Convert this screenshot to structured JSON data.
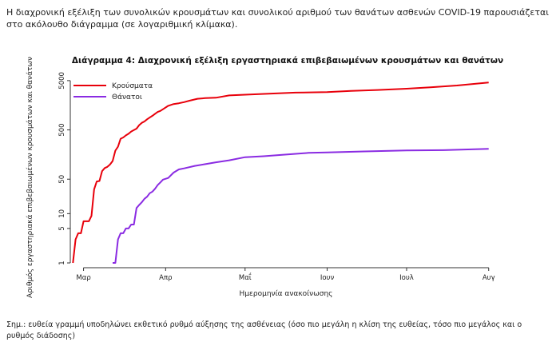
{
  "intro_text": "Η διαχρονική εξέλιξη των συνολικών κρουσμάτων και συνολικού αριθμού των θανάτων ασθενών COVID-19 παρουσιάζεται στο ακόλουθο διάγραμμα (σε λογαριθμική κλίμακα).",
  "note_text": "Σημ.: ευθεία γραμμή υποδηλώνει εκθετικό ρυθμό αύξησης της ασθένειας (όσο πιο μεγάλη η κλίση της ευθείας, τόσο πιο μεγάλος και ο ρυθμός διάδοσης)",
  "chart_data": {
    "type": "line",
    "title": "Διάγραμμα 4: Διαχρονική εξέλιξη εργαστηριακά επιβεβαιωμένων κρουσμάτων και θανάτων",
    "xlabel": "Ημερομηνία ανακοίνωσης",
    "ylabel": "Αριθμός εργαστηριακά επιβεβαιωμένων κρουσμάτων και θανάτων",
    "yscale": "log",
    "ylim": [
      0.8,
      6000
    ],
    "xlim": [
      "2020-02-25",
      "2020-08-05"
    ],
    "y_ticks": [
      1,
      5,
      10,
      50,
      500,
      5000
    ],
    "x_ticks": [
      {
        "date": "2020-03-01",
        "label": "Μαρ"
      },
      {
        "date": "2020-04-01",
        "label": "Απρ"
      },
      {
        "date": "2020-05-01",
        "label": "Μαΐ"
      },
      {
        "date": "2020-06-01",
        "label": "Ιουν"
      },
      {
        "date": "2020-07-01",
        "label": "Ιουλ"
      },
      {
        "date": "2020-08-01",
        "label": "Αυγ"
      }
    ],
    "legend_position": "top-left",
    "grid": false,
    "series": [
      {
        "name": "Κρούσματα",
        "color": "#e8000b",
        "points": [
          [
            "2020-02-26",
            1
          ],
          [
            "2020-02-27",
            3
          ],
          [
            "2020-02-28",
            4
          ],
          [
            "2020-02-29",
            4
          ],
          [
            "2020-03-01",
            7
          ],
          [
            "2020-03-02",
            7
          ],
          [
            "2020-03-03",
            7
          ],
          [
            "2020-03-04",
            9
          ],
          [
            "2020-03-05",
            31
          ],
          [
            "2020-03-06",
            45
          ],
          [
            "2020-03-07",
            46
          ],
          [
            "2020-03-08",
            73
          ],
          [
            "2020-03-09",
            84
          ],
          [
            "2020-03-10",
            89
          ],
          [
            "2020-03-11",
            99
          ],
          [
            "2020-03-12",
            117
          ],
          [
            "2020-03-13",
            190
          ],
          [
            "2020-03-14",
            228
          ],
          [
            "2020-03-15",
            331
          ],
          [
            "2020-03-16",
            352
          ],
          [
            "2020-03-17",
            387
          ],
          [
            "2020-03-18",
            418
          ],
          [
            "2020-03-19",
            464
          ],
          [
            "2020-03-20",
            495
          ],
          [
            "2020-03-21",
            530
          ],
          [
            "2020-03-22",
            624
          ],
          [
            "2020-03-23",
            695
          ],
          [
            "2020-03-24",
            743
          ],
          [
            "2020-03-25",
            821
          ],
          [
            "2020-03-26",
            892
          ],
          [
            "2020-03-27",
            966
          ],
          [
            "2020-03-28",
            1061
          ],
          [
            "2020-03-29",
            1156
          ],
          [
            "2020-03-30",
            1212
          ],
          [
            "2020-03-31",
            1314
          ],
          [
            "2020-04-02",
            1544
          ],
          [
            "2020-04-04",
            1673
          ],
          [
            "2020-04-06",
            1735
          ],
          [
            "2020-04-08",
            1832
          ],
          [
            "2020-04-10",
            1955
          ],
          [
            "2020-04-13",
            2145
          ],
          [
            "2020-04-16",
            2207
          ],
          [
            "2020-04-20",
            2245
          ],
          [
            "2020-04-25",
            2506
          ],
          [
            "2020-05-01",
            2591
          ],
          [
            "2020-05-10",
            2710
          ],
          [
            "2020-05-20",
            2850
          ],
          [
            "2020-06-01",
            2918
          ],
          [
            "2020-06-10",
            3083
          ],
          [
            "2020-06-20",
            3227
          ],
          [
            "2020-07-01",
            3432
          ],
          [
            "2020-07-10",
            3672
          ],
          [
            "2020-07-20",
            3983
          ],
          [
            "2020-08-01",
            4587
          ]
        ]
      },
      {
        "name": "Θάνατοι",
        "color": "#8a2be2",
        "points": [
          [
            "2020-03-12",
            1
          ],
          [
            "2020-03-13",
            1
          ],
          [
            "2020-03-14",
            3
          ],
          [
            "2020-03-15",
            4
          ],
          [
            "2020-03-16",
            4
          ],
          [
            "2020-03-17",
            5
          ],
          [
            "2020-03-18",
            5
          ],
          [
            "2020-03-19",
            6
          ],
          [
            "2020-03-20",
            6
          ],
          [
            "2020-03-21",
            13
          ],
          [
            "2020-03-22",
            15
          ],
          [
            "2020-03-23",
            17
          ],
          [
            "2020-03-24",
            20
          ],
          [
            "2020-03-25",
            22
          ],
          [
            "2020-03-26",
            26
          ],
          [
            "2020-03-27",
            28
          ],
          [
            "2020-03-28",
            32
          ],
          [
            "2020-03-29",
            38
          ],
          [
            "2020-03-30",
            43
          ],
          [
            "2020-03-31",
            49
          ],
          [
            "2020-04-02",
            53
          ],
          [
            "2020-04-04",
            68
          ],
          [
            "2020-04-06",
            79
          ],
          [
            "2020-04-08",
            83
          ],
          [
            "2020-04-12",
            93
          ],
          [
            "2020-04-16",
            101
          ],
          [
            "2020-04-20",
            110
          ],
          [
            "2020-04-25",
            121
          ],
          [
            "2020-05-01",
            140
          ],
          [
            "2020-05-08",
            146
          ],
          [
            "2020-05-15",
            156
          ],
          [
            "2020-05-25",
            171
          ],
          [
            "2020-06-01",
            175
          ],
          [
            "2020-06-15",
            183
          ],
          [
            "2020-07-01",
            192
          ],
          [
            "2020-07-15",
            194
          ],
          [
            "2020-08-01",
            206
          ]
        ]
      }
    ]
  }
}
